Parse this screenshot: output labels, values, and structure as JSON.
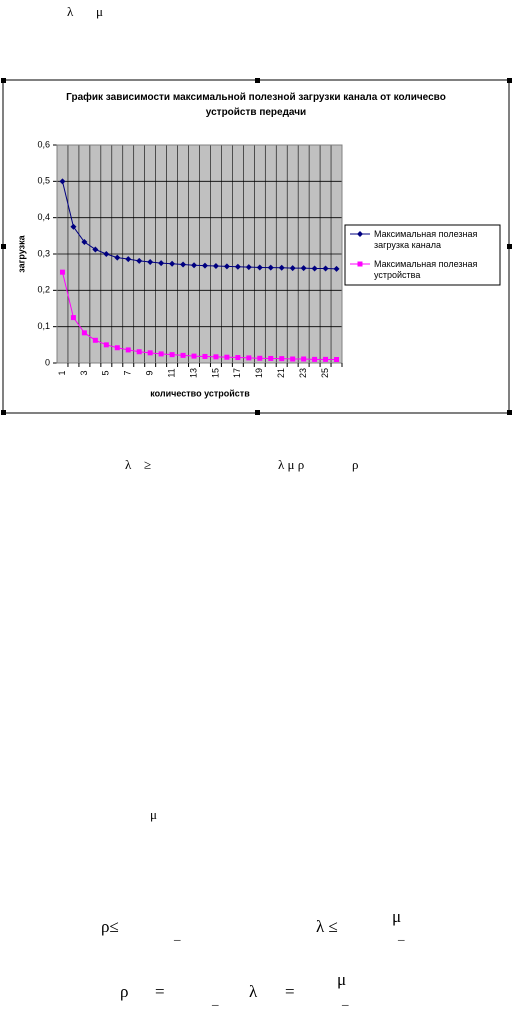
{
  "document": {
    "fragments": [
      "λ",
      "μ",
      "λ",
      "≥",
      "λ μ ρ",
      "ρ",
      "μ",
      "ρ≤",
      "_",
      "λ  ≤",
      "μ",
      "_",
      "ρ",
      "=",
      "_",
      "λ",
      "=",
      "μ",
      "_"
    ]
  },
  "chart_data": {
    "type": "line",
    "title": "График зависимости максимальной полезной загрузки канала от количесво устройств передачи",
    "x_label": "количество устройств",
    "y_label": "загрузка",
    "categories": [
      "1",
      null,
      "3",
      null,
      "5",
      null,
      "7",
      null,
      "9",
      null,
      "11",
      null,
      "13",
      null,
      "15",
      null,
      "17",
      null,
      "19",
      null,
      "21",
      null,
      "23",
      null,
      "25",
      null
    ],
    "series": [
      {
        "name": "Максимальная полезная загрузка канала",
        "color": "#000080",
        "marker": "diamond",
        "values": [
          0.5,
          0.375,
          0.333,
          0.3125,
          0.3,
          0.29,
          0.286,
          0.281,
          0.278,
          0.275,
          0.273,
          0.271,
          0.269,
          0.268,
          0.267,
          0.266,
          0.265,
          0.264,
          0.263,
          0.2625,
          0.262,
          0.261,
          0.261,
          0.26,
          0.26,
          0.259
        ]
      },
      {
        "name": "Максимальная полезная устройства",
        "color": "#ff00ff",
        "marker": "square",
        "values": [
          0.25,
          0.125,
          0.083,
          0.0625,
          0.05,
          0.042,
          0.036,
          0.031,
          0.028,
          0.025,
          0.023,
          0.021,
          0.019,
          0.018,
          0.017,
          0.016,
          0.015,
          0.014,
          0.013,
          0.0125,
          0.012,
          0.011,
          0.011,
          0.01,
          0.01,
          0.0096
        ]
      }
    ],
    "ylim": [
      0,
      0.6
    ],
    "yticks": [
      0,
      {
        "value": 0.1,
        "label": "0,1"
      },
      {
        "value": 0.2,
        "label": "0,2"
      },
      {
        "value": 0.3,
        "label": "0,3"
      },
      {
        "value": 0.4,
        "label": "0,4"
      },
      {
        "value": 0.5,
        "label": "0,5"
      },
      {
        "value": 0.6,
        "label": "0,6"
      }
    ],
    "grid": true,
    "plot_background": "#c0c0c0"
  }
}
